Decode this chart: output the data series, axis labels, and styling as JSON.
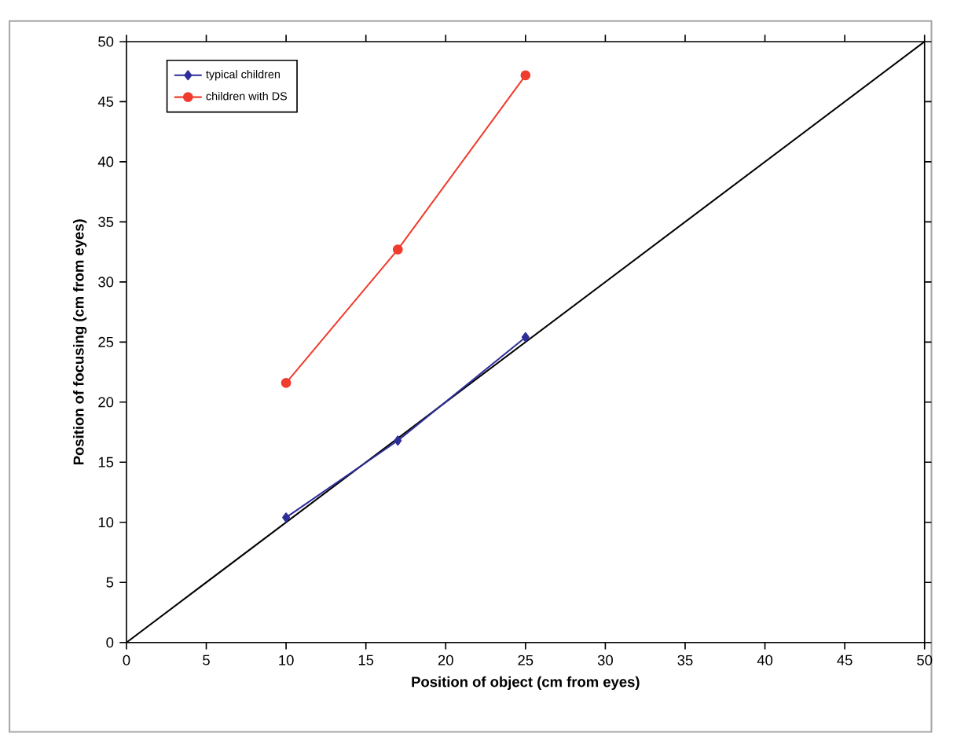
{
  "chart_data": {
    "type": "line",
    "xlabel": "Position of object (cm from eyes)",
    "ylabel": "Position of focusing (cm from eyes)",
    "xlim": [
      0,
      50
    ],
    "ylim": [
      0,
      50
    ],
    "xticks": [
      0,
      5,
      10,
      15,
      20,
      25,
      30,
      35,
      40,
      45,
      50
    ],
    "yticks": [
      0,
      5,
      10,
      15,
      20,
      25,
      30,
      35,
      40,
      45,
      50
    ],
    "grid": false,
    "legend": "top left",
    "series": [
      {
        "name": "typical children",
        "color": "#2e2e9a",
        "marker": "diamond",
        "x": [
          10,
          17,
          25
        ],
        "values": [
          10.4,
          16.8,
          25.4
        ]
      },
      {
        "name": "children with DS",
        "color": "#f03c2e",
        "marker": "circle",
        "x": [
          10,
          17,
          25
        ],
        "values": [
          21.6,
          32.7,
          47.2
        ]
      },
      {
        "type": "line",
        "color": "#000000",
        "marker": "none",
        "x": [
          0,
          50
        ],
        "values": [
          0,
          50
        ]
      }
    ]
  }
}
